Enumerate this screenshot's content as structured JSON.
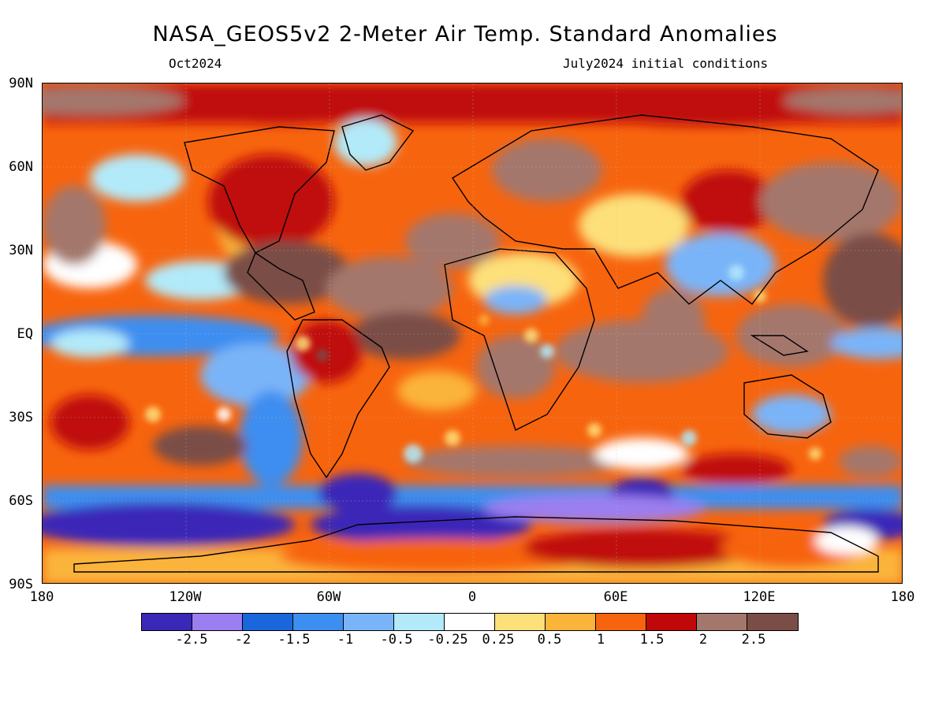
{
  "title": "NASA_GEOS5v2 2-Meter Air Temp. Standard Anomalies",
  "subtitle_left": "Oct2024",
  "subtitle_right": "July2024 initial conditions",
  "lat_labels": [
    "90N",
    "60N",
    "30N",
    "EQ",
    "30S",
    "60S",
    "90S"
  ],
  "lon_labels": [
    "180",
    "120W",
    "60W",
    "0",
    "60E",
    "120E",
    "180"
  ],
  "colorbar": {
    "colors": [
      "#3a28b8",
      "#9b7ef0",
      "#1a66dc",
      "#3c8ef0",
      "#7ab4f8",
      "#b2eafa",
      "#ffffff",
      "#fde07a",
      "#fbb43a",
      "#f7640e",
      "#c00808",
      "#a4776c",
      "#7a4e46"
    ],
    "labels": [
      "-2.5",
      "-2",
      "-1.5",
      "-1",
      "-0.5",
      "-0.25",
      "0.25",
      "0.5",
      "1",
      "1.5",
      "2",
      "2.5"
    ]
  }
}
